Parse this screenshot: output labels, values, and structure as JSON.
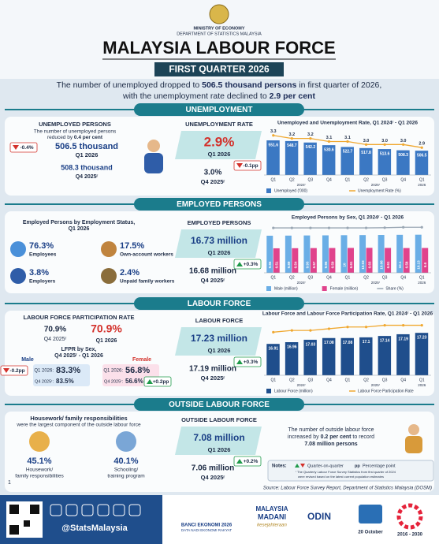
{
  "header": {
    "ministry": "MINISTRY OF ECONOMY",
    "department": "DEPARTMENT OF STATISTICS MALAYSIA",
    "title": "MALAYSIA LABOUR FORCE",
    "period": "FIRST QUARTER 2026"
  },
  "headline": {
    "line1": [
      "The number of unemployed dropped to ",
      "506.5 thousand persons",
      " in first quarter of 2026,"
    ],
    "line2": [
      "with the unemployment rate declined to ",
      "2.9 per cent"
    ]
  },
  "unemployment": {
    "title": "UNEMPLOYMENT",
    "persons": {
      "heading": "UNEMPLOYED PERSONS",
      "note": [
        "The number of unemployed persons",
        "reduced by ",
        "0.4 per cent"
      ],
      "change": "-0.4%",
      "current": "506.5 thousand",
      "current_period": "Q1 2026",
      "previous": "508.3 thousand",
      "previous_period": "Q4 2025ʳ"
    },
    "rate": {
      "heading": "UNEMPLOYMENT RATE",
      "current": "2.9%",
      "current_period": "Q1 2026",
      "change": "-0.1pp",
      "previous": "3.0%",
      "previous_period": "Q4 2025ʳ"
    }
  },
  "employed": {
    "title": "EMPLOYED PERSONS",
    "status": {
      "heading": [
        "Employed Persons by Employment Status,",
        "Q1 2026"
      ],
      "items": [
        {
          "value": "76.3%",
          "label": "Employees"
        },
        {
          "value": "17.5%",
          "label": "Own-account workers"
        },
        {
          "value": "3.8%",
          "label": "Employers"
        },
        {
          "value": "2.4%",
          "label": "Unpaid family workers"
        }
      ]
    },
    "total": {
      "heading": "EMPLOYED PERSONS",
      "current": "16.73 million",
      "current_period": "Q1 2026",
      "change": "+0.3%",
      "previous": "16.68 million",
      "previous_period": "Q4 2025ʳ"
    }
  },
  "labour_force": {
    "title": "LABOUR FORCE",
    "lfpr": {
      "heading": "LABOUR FORCE PARTICIPATION RATE",
      "previous": "70.9%",
      "previous_period": "Q4 2025ʳ",
      "current": "70.9%",
      "current_period": "Q1 2026",
      "by_sex_heading": [
        "LFPR by Sex,",
        "Q4 2025ʳ - Q1 2026"
      ],
      "male": {
        "label": "Male",
        "change": "-0.2pp",
        "current_label": "Q1 2026:",
        "current": "83.3%",
        "previous_label": "Q4 2025ʳ:",
        "previous": "83.5%"
      },
      "female": {
        "label": "Female",
        "change": "+0.2pp",
        "current_label": "Q1 2026:",
        "current": "56.8%",
        "previous_label": "Q4 2025ʳ:",
        "previous": "56.6%"
      }
    },
    "total": {
      "heading": "LABOUR FORCE",
      "current": "17.23 million",
      "current_period": "Q1 2026",
      "change": "+0.3%",
      "previous": "17.19 million",
      "previous_period": "Q4 2025ʳ"
    }
  },
  "outside": {
    "title": "OUTSIDE LABOUR FORCE",
    "reason": {
      "heading": "Housework/ family responsibilities",
      "subheading": "were the largest component of the outside labour force",
      "items": [
        {
          "value": "45.1%",
          "label": [
            "Housework/",
            "family responsibilities"
          ]
        },
        {
          "value": "40.1%",
          "label": [
            "Schooling/",
            "training program"
          ]
        }
      ]
    },
    "total": {
      "heading": "OUTSIDE LABOUR FORCE",
      "current": "7.08 million",
      "current_period": "Q1 2026",
      "change": "+0.2%",
      "previous": "7.06 million",
      "previous_period": "Q4 2025ʳ"
    },
    "summary": [
      "The number of outside labour force",
      "increased by ",
      "0.2 per cent",
      " to record",
      "7.08 million persons"
    ]
  },
  "notes": {
    "heading": "Notes:",
    "qoq": "Quarter-on-quarter",
    "pp": "pp",
    "pp_text": "Percentage point",
    "revised": [
      "ʳ The Quarterly Labour Force Survey Statistics from first quarter of 2024",
      "were revised based on the latest current population estimates"
    ]
  },
  "source": "Source: Labour Force Survey Report, Department of Statistics Malaysia (DOSM)",
  "page_number": "1",
  "footer": {
    "handle": "@StatsMalaysia",
    "banci": [
      "BANCI EKONOMI 2026",
      "DATA NADI EKONOMI RAKYAT"
    ],
    "madani": [
      "MALAYSIA",
      "MADANI",
      "kesejahteraan"
    ],
    "odin": "ODIN",
    "date": "20 October",
    "sdg": "2016 - 2030"
  },
  "chart_data": [
    {
      "type": "bar",
      "title": "Unemployed and Unemployment Rate, Q1 2024ʳ - Q1 2026",
      "categories": [
        "Q1",
        "Q2",
        "Q3",
        "Q4",
        "Q1",
        "Q2",
        "Q3",
        "Q4",
        "Q1"
      ],
      "groups": [
        "2024ʳ",
        "2025ʳ",
        "2026"
      ],
      "series": [
        {
          "name": "Unemployed ('000)",
          "color": "#3b78c3",
          "values": [
            551.6,
            548.7,
            542.2,
            530.6,
            522.7,
            517.8,
            513.6,
            508.3,
            506.5
          ]
        },
        {
          "name": "Unemployment Rate (%)",
          "type": "line",
          "axis": "y2",
          "color": "#f0a830",
          "values": [
            3.3,
            3.2,
            3.2,
            3.1,
            3.1,
            3.0,
            3.0,
            3.0,
            2.9
          ],
          "value_labels": [
            "3.3",
            "3.2",
            "3.2",
            "3.1",
            "3.1",
            "3.0",
            "3.0",
            "3.0",
            "2.9"
          ]
        }
      ],
      "ylim": [
        400,
        600
      ],
      "y2lim": [
        2,
        3.5
      ]
    },
    {
      "type": "bar",
      "title": "Employed Persons by Sex, Q1 2024ʳ - Q1 2026",
      "categories": [
        "Q1",
        "Q2",
        "Q3",
        "Q4",
        "Q1",
        "Q2",
        "Q3",
        "Q4",
        "Q1"
      ],
      "groups": [
        "2024ʳ",
        "2025ʳ",
        "2026"
      ],
      "series": [
        {
          "name": "Male (million)",
          "color": "#6aaee6",
          "values": [
            9.86,
            9.89,
            9.93,
            9.96,
            10.0,
            10.03,
            10.06,
            10.1,
            10.13
          ]
        },
        {
          "name": "Female (million)",
          "color": "#e0438c",
          "values": [
            6.51,
            6.54,
            6.57,
            6.59,
            6.61,
            6.63,
            6.61,
            6.58,
            6.6
          ]
        },
        {
          "name": "Share (%)",
          "type": "line",
          "axis": "y2",
          "color": "#9aa7b4",
          "values": [
            60.2,
            60.2,
            60.2,
            60.2,
            60.2,
            60.2,
            60.3,
            60.5,
            60.5
          ]
        }
      ],
      "ylim": [
        0,
        13
      ],
      "y2lim": [
        40,
        62
      ]
    },
    {
      "type": "bar",
      "title": "Labour Force and Labour Force Participation Rate, Q1 2024ʳ - Q1 2026",
      "categories": [
        "Q1",
        "Q2",
        "Q3",
        "Q4",
        "Q1",
        "Q2",
        "Q3",
        "Q4",
        "Q1"
      ],
      "groups": [
        "2024ʳ",
        "2025ʳ",
        "2026"
      ],
      "series": [
        {
          "name": "Labour Force (million)",
          "color": "#1f4e8c",
          "values": [
            16.91,
            16.96,
            17.03,
            17.08,
            17.08,
            17.1,
            17.14,
            17.19,
            17.23
          ]
        },
        {
          "name": "Labour Force Participation Rate",
          "type": "line",
          "axis": "y2",
          "color": "#f0a830",
          "values": [
            70.5,
            70.6,
            70.6,
            70.7,
            70.8,
            70.8,
            70.9,
            70.9,
            70.9
          ]
        }
      ],
      "ylim": [
        16,
        17.6
      ],
      "y2lim": [
        68,
        71.2
      ]
    }
  ]
}
